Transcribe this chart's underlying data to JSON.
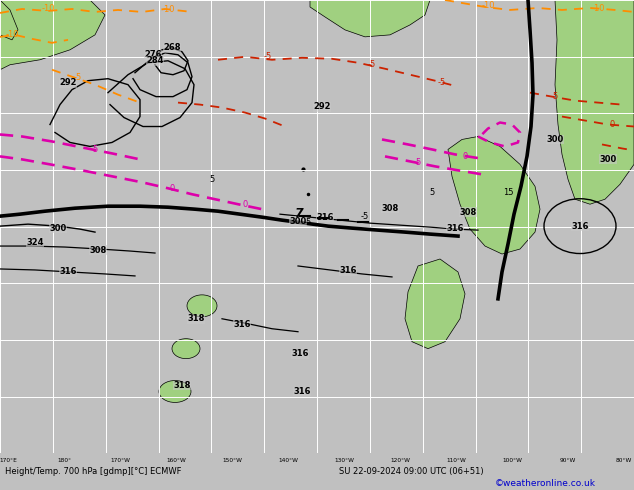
{
  "title_bottom": "Height/Temp. 700 hPa [gdmp][°C] ECMWF",
  "datetime_str": "SU 22-09-2024 09:00 UTC (06+51)",
  "credit": "©weatheronline.co.uk",
  "bg_ocean": "#c8c8c8",
  "bg_land": "#a0d080",
  "grid_color": "#ffffff",
  "black": "#000000",
  "orange": "#ff8c00",
  "red": "#cc2200",
  "magenta": "#dd00aa",
  "blue_credit": "#0000cc",
  "bottom_bar": "#c0c0c0",
  "figsize": [
    6.34,
    4.9
  ],
  "dpi": 100,
  "lon_labels": [
    "170°E",
    "180°",
    "170°W",
    "160°W",
    "150°W",
    "140°W",
    "130°W",
    "120°W",
    "110°W",
    "100°W",
    "90°W",
    "80°W"
  ]
}
